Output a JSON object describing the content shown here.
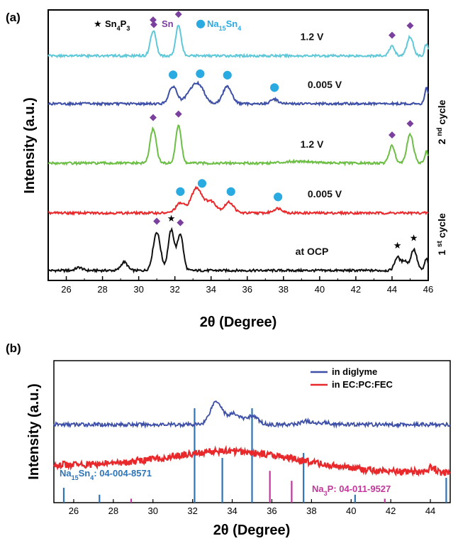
{
  "colors": {
    "sn4p3": "#000000",
    "sn": "#7b3f9e",
    "na15sn4": "#29abe2",
    "na3p_ref": "#c0399a",
    "ref_a_blue": "#2f74b5"
  },
  "chart_data": [
    {
      "type": "line",
      "panel_label": "(a)",
      "xlabel": "2θ (Degree)",
      "ylabel": "Intensity (a.u.)",
      "xlim": [
        25,
        46
      ],
      "xticks": [
        26,
        28,
        30,
        32,
        34,
        36,
        38,
        40,
        42,
        44,
        46
      ],
      "grid": false,
      "legend": {
        "placement": "top-left",
        "entries": [
          {
            "symbol": "★",
            "pre": "Sn",
            "s1": "4",
            "mid": "P",
            "s2": "3",
            "color": "#000000"
          },
          {
            "symbol": "◆",
            "pre": "Sn",
            "s1": "",
            "mid": "",
            "s2": "",
            "color": "#7b3f9e"
          },
          {
            "symbol": "●",
            "pre": "Na",
            "s1": "15",
            "mid": "Sn",
            "s2": "4",
            "color": "#29abe2"
          }
        ]
      },
      "group_labels": [
        {
          "text": "1 st cycle",
          "base": "1",
          "sup": "st",
          "word": "cycle"
        },
        {
          "text": "2 nd cycle",
          "base": "2",
          "sup": "nd",
          "word": "cycle"
        }
      ],
      "series": [
        {
          "name": "at OCP",
          "color": "#111111",
          "offset": 0,
          "peaks": [
            [
              26.7,
              0.08,
              0.18
            ],
            [
              29.2,
              0.22,
              0.18
            ],
            [
              31.0,
              1.0,
              0.2
            ],
            [
              31.8,
              1.05,
              0.17
            ],
            [
              32.3,
              0.95,
              0.16
            ],
            [
              44.3,
              0.35,
              0.16
            ],
            [
              44.7,
              0.25,
              0.14
            ],
            [
              45.2,
              0.55,
              0.17
            ],
            [
              45.9,
              0.3,
              0.1
            ]
          ],
          "markers": [
            {
              "x": 31.0,
              "sym": "◆"
            },
            {
              "x": 31.8,
              "sym": "★"
            },
            {
              "x": 32.3,
              "sym": "◆"
            },
            {
              "x": 44.3,
              "sym": "★"
            },
            {
              "x": 45.2,
              "sym": "★"
            }
          ]
        },
        {
          "name": "0.005  V",
          "color": "#e8282b",
          "offset": 1.5,
          "peaks": [
            [
              32.3,
              0.25,
              0.25
            ],
            [
              33.2,
              0.65,
              0.3
            ],
            [
              34.0,
              0.3,
              0.3
            ],
            [
              35.0,
              0.28,
              0.25
            ],
            [
              37.7,
              0.12,
              0.25
            ]
          ],
          "markers": [
            {
              "x": 32.3,
              "sym": "●"
            },
            {
              "x": 33.5,
              "sym": "●"
            },
            {
              "x": 35.1,
              "sym": "●"
            },
            {
              "x": 37.7,
              "sym": "●"
            }
          ]
        },
        {
          "name": "1.2  V",
          "color": "#6cbe45",
          "offset": 2.8,
          "peaks": [
            [
              30.8,
              0.9,
              0.17
            ],
            [
              32.2,
              1.0,
              0.15
            ],
            [
              38.9,
              0.05,
              0.8
            ],
            [
              44.0,
              0.45,
              0.16
            ],
            [
              45.0,
              0.75,
              0.18
            ],
            [
              45.9,
              0.3,
              0.1
            ]
          ],
          "markers": [
            {
              "x": 30.8,
              "sym": "◆"
            },
            {
              "x": 32.2,
              "sym": "◆"
            },
            {
              "x": 44.0,
              "sym": "◆"
            },
            {
              "x": 45.0,
              "sym": "◆"
            }
          ]
        },
        {
          "name": "0.005  V",
          "color": "#3d4fa6",
          "offset": 4.35,
          "peaks": [
            [
              31.9,
              0.45,
              0.22
            ],
            [
              33.0,
              0.35,
              0.35
            ],
            [
              33.4,
              0.3,
              0.3
            ],
            [
              34.9,
              0.45,
              0.25
            ],
            [
              37.5,
              0.12,
              0.2
            ],
            [
              45.9,
              0.4,
              0.1
            ]
          ],
          "markers": [
            {
              "x": 31.9,
              "sym": "●"
            },
            {
              "x": 33.4,
              "sym": "●"
            },
            {
              "x": 34.9,
              "sym": "●"
            },
            {
              "x": 37.5,
              "sym": "●"
            }
          ]
        },
        {
          "name": "1.2  V",
          "color": "#5fc8d8",
          "offset": 5.6,
          "peaks": [
            [
              30.8,
              0.65,
              0.16
            ],
            [
              32.2,
              0.8,
              0.15
            ],
            [
              44.0,
              0.25,
              0.15
            ],
            [
              45.0,
              0.5,
              0.17
            ],
            [
              45.9,
              0.3,
              0.1
            ]
          ],
          "markers": [
            {
              "x": 30.8,
              "sym": "◆"
            },
            {
              "x": 32.2,
              "sym": "◆"
            },
            {
              "x": 44.0,
              "sym": "◆"
            },
            {
              "x": 45.0,
              "sym": "◆"
            }
          ]
        }
      ]
    },
    {
      "type": "line",
      "panel_label": "(b)",
      "xlabel": "2θ (Degree)",
      "ylabel": "Intensity (a.u.)",
      "xlim": [
        25,
        45
      ],
      "xticks": [
        26,
        28,
        30,
        32,
        34,
        36,
        38,
        40,
        42,
        44
      ],
      "grid": false,
      "legend": {
        "placement": "top-right"
      },
      "series": [
        {
          "name": "in diglyme",
          "color": "#3d4fa6",
          "offset": 1.0,
          "peaks": [
            [
              33.2,
              0.55,
              0.3
            ],
            [
              34.1,
              0.25,
              0.3
            ],
            [
              35.0,
              0.2,
              0.3
            ],
            [
              37.7,
              0.08,
              0.25
            ],
            [
              38.6,
              0.05,
              0.3
            ]
          ]
        },
        {
          "name": "in EC:PC:FEC",
          "color": "#e8282b",
          "offset": 0.0,
          "peaks": [
            [
              34.0,
              0.35,
              3.2
            ],
            [
              44.1,
              0.1,
              0.2
            ]
          ]
        }
      ],
      "reference_a": {
        "pre": "Na",
        "s1": "15",
        "mid": "Sn",
        "s2": "4",
        "post": ": 04-004-8571",
        "color": "#2f74b5",
        "lines": [
          [
            25.5,
            0.15
          ],
          [
            27.3,
            0.08
          ],
          [
            32.1,
            0.95
          ],
          [
            33.5,
            0.45
          ],
          [
            35.0,
            0.95
          ],
          [
            37.6,
            0.5
          ],
          [
            40.2,
            0.08
          ],
          [
            44.8,
            0.25
          ]
        ]
      },
      "reference_b": {
        "pre": "Na",
        "s1": "3",
        "mid": "P",
        "s2": "",
        "post": ": 04-011-9527",
        "color": "#c0399a",
        "lines": [
          [
            28.9,
            0.04
          ],
          [
            35.9,
            0.32
          ],
          [
            37.0,
            0.22
          ],
          [
            41.7,
            0.04
          ]
        ]
      }
    }
  ]
}
